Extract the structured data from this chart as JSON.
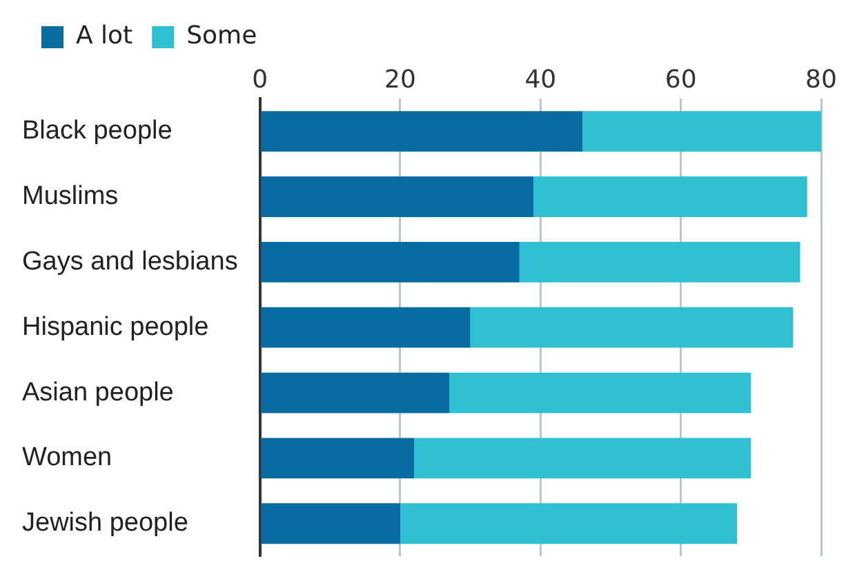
{
  "chart_data": {
    "type": "bar",
    "orientation": "horizontal",
    "stacked": true,
    "categories": [
      "Black people",
      "Muslims",
      "Gays and lesbians",
      "Hispanic people",
      "Asian people",
      "Women",
      "Jewish people"
    ],
    "series": [
      {
        "name": "A lot",
        "color": "#086ca0",
        "values": [
          46,
          39,
          37,
          30,
          27,
          22,
          20
        ]
      },
      {
        "name": "Some",
        "color": "#2ebfd3",
        "values": [
          34,
          39,
          40,
          46,
          43,
          48,
          48
        ]
      }
    ],
    "xlim": [
      0,
      80
    ],
    "xticks": [
      0,
      20,
      40,
      60,
      80
    ],
    "grid": "x",
    "legend": "top left"
  }
}
